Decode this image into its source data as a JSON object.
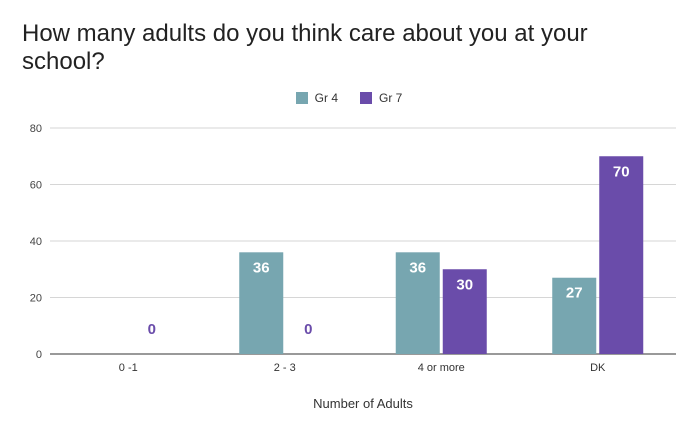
{
  "title": "How many adults do you think care about you at your school?",
  "colors": {
    "gr4": "#77A6B0",
    "gr7": "#6A4CAA",
    "grid": "#D6D6D6",
    "axis": "#333333"
  },
  "legend": [
    {
      "label": "Gr 4",
      "color": "#77A6B0"
    },
    {
      "label": "Gr 7",
      "color": "#6A4CAA"
    }
  ],
  "chart_data": {
    "type": "bar",
    "categories": [
      "0 -1",
      "2 - 3",
      "4 or more",
      "DK"
    ],
    "series": [
      {
        "name": "Gr 4",
        "values": [
          0,
          36,
          36,
          27
        ]
      },
      {
        "name": "Gr 7",
        "values": [
          0,
          0,
          30,
          70
        ]
      }
    ],
    "xlabel": "Number of Adults",
    "ylabel": "",
    "ylim": [
      0,
      80
    ],
    "yticks": [
      0,
      20,
      40,
      60,
      80
    ],
    "grid": true,
    "legend_position": "top-center"
  }
}
